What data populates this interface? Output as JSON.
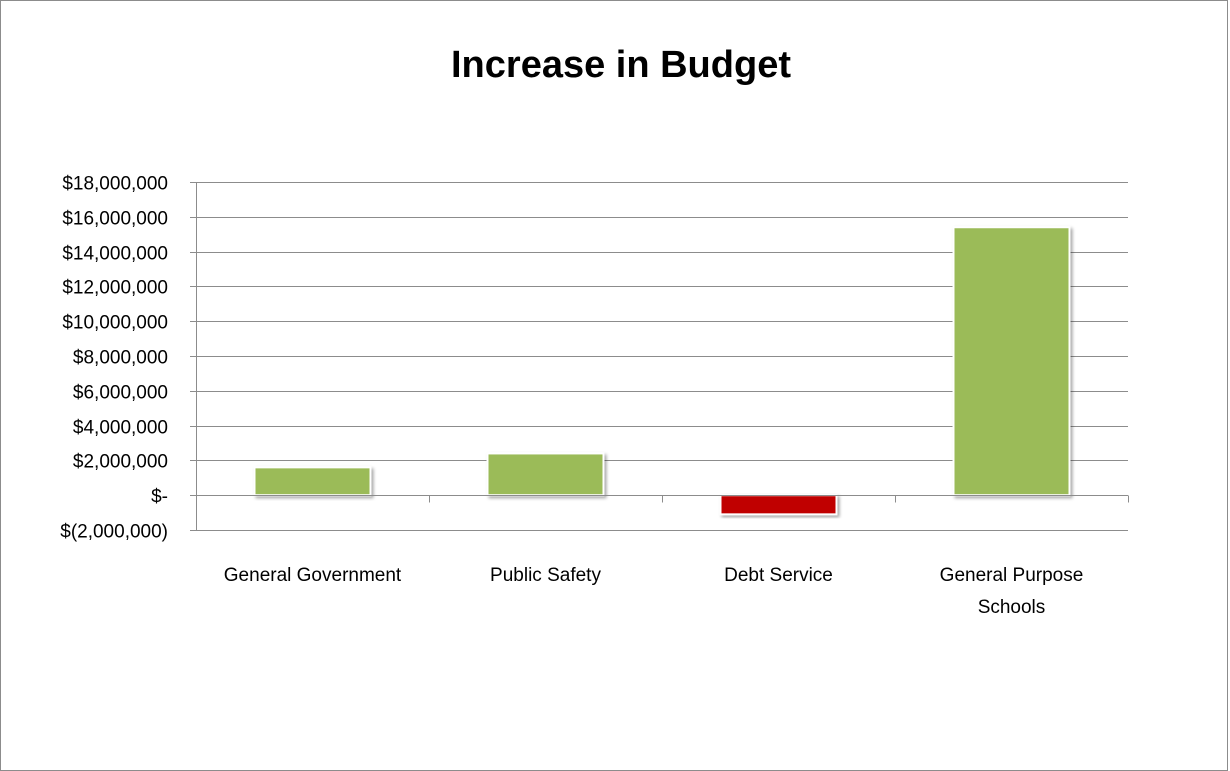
{
  "chart_data": {
    "type": "bar",
    "title": "Increase in Budget",
    "xlabel": "",
    "ylabel": "",
    "categories": [
      "General Government",
      "Public Safety",
      "Debt Service",
      "General Purpose Schools"
    ],
    "category_lines": [
      [
        "General Government"
      ],
      [
        "Public Safety"
      ],
      [
        "Debt Service"
      ],
      [
        "General Purpose",
        "Schools"
      ]
    ],
    "values": [
      1600000,
      2400000,
      -1100000,
      15400000
    ],
    "ylim": [
      -2000000,
      18000000
    ],
    "yticks": [
      -2000000,
      0,
      2000000,
      4000000,
      6000000,
      8000000,
      10000000,
      12000000,
      14000000,
      16000000,
      18000000
    ],
    "ytick_labels": [
      "$(2,000,000)",
      "$-",
      "$2,000,000",
      "$4,000,000",
      "$6,000,000",
      "$8,000,000",
      "$10,000,000",
      "$12,000,000",
      "$14,000,000",
      "$16,000,000",
      "$18,000,000"
    ],
    "colors": {
      "positive": "#9bbb59",
      "negative": "#c00000",
      "gridline": "#8c8c8c",
      "axis": "#8c8c8c"
    },
    "grid": true,
    "legend": "none"
  }
}
